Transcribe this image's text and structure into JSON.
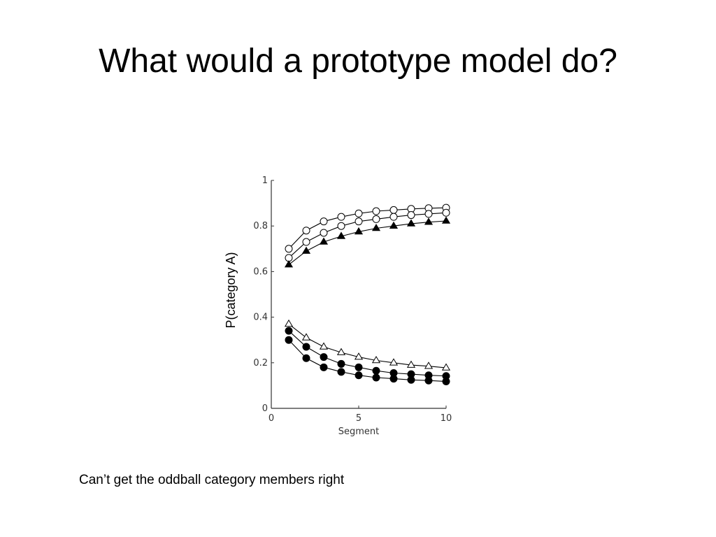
{
  "slide": {
    "title": "What would a prototype model do?",
    "caption": "Can’t get the oddball category members right"
  },
  "chart_data": {
    "type": "line",
    "xlabel": "Segment",
    "ylabel": "P(category A)",
    "xlim": [
      0,
      10
    ],
    "ylim": [
      0,
      1
    ],
    "x_ticks": [
      "0",
      "5",
      "10"
    ],
    "y_ticks": [
      "0",
      "0.2",
      "0.4",
      "0.6",
      "0.8",
      "1"
    ],
    "x": [
      1,
      2,
      3,
      4,
      5,
      6,
      7,
      8,
      9,
      10
    ],
    "grid": false,
    "series": [
      {
        "marker": "open-circle",
        "values": [
          0.7,
          0.78,
          0.82,
          0.84,
          0.855,
          0.865,
          0.87,
          0.875,
          0.878,
          0.88
        ]
      },
      {
        "marker": "open-circle",
        "values": [
          0.66,
          0.73,
          0.77,
          0.8,
          0.82,
          0.83,
          0.84,
          0.848,
          0.853,
          0.858
        ]
      },
      {
        "marker": "filled-triangle",
        "values": [
          0.63,
          0.69,
          0.73,
          0.755,
          0.775,
          0.79,
          0.8,
          0.81,
          0.817,
          0.822
        ]
      },
      {
        "marker": "open-triangle",
        "values": [
          0.37,
          0.31,
          0.27,
          0.245,
          0.225,
          0.21,
          0.2,
          0.19,
          0.185,
          0.178
        ]
      },
      {
        "marker": "filled-circle",
        "values": [
          0.34,
          0.27,
          0.225,
          0.195,
          0.18,
          0.165,
          0.155,
          0.15,
          0.145,
          0.142
        ]
      },
      {
        "marker": "filled-circle",
        "values": [
          0.3,
          0.22,
          0.18,
          0.16,
          0.145,
          0.135,
          0.13,
          0.125,
          0.122,
          0.118
        ]
      }
    ],
    "colors": {
      "line": "#000000",
      "axis": "#333333",
      "marker_fill": "#000000",
      "marker_open_fill": "#ffffff"
    }
  }
}
